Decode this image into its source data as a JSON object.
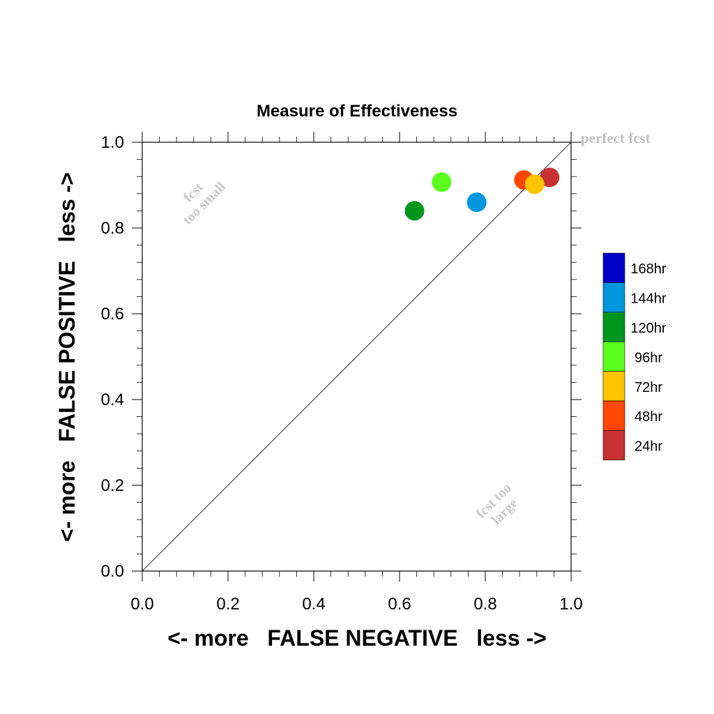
{
  "chart_data": {
    "type": "scatter",
    "title": "Measure of Effectiveness",
    "xlabel": "<- more   FALSE NEGATIVE   less ->",
    "ylabel": "<- more   FALSE POSITIVE   less ->",
    "xlim": [
      0.0,
      1.0
    ],
    "ylim": [
      0.0,
      1.0
    ],
    "xticks": [
      "0.0",
      "0.2",
      "0.4",
      "0.6",
      "0.8",
      "1.0"
    ],
    "yticks": [
      "0.0",
      "0.2",
      "0.4",
      "0.6",
      "0.8",
      "1.0"
    ],
    "diagonal_line": true,
    "annotations": {
      "perfect": "perfect fcst",
      "too_small": [
        "fcst",
        "too small"
      ],
      "too_large": [
        "fcst too",
        "large"
      ]
    },
    "legend_position": "right",
    "legend": [
      {
        "label": "168hr",
        "color": "#0000c8"
      },
      {
        "label": "144hr",
        "color": "#0096dc"
      },
      {
        "label": "120hr",
        "color": "#00961e"
      },
      {
        "label": "96hr",
        "color": "#5aff1e"
      },
      {
        "label": "72hr",
        "color": "#ffc300"
      },
      {
        "label": "48hr",
        "color": "#ff4600"
      },
      {
        "label": "24hr",
        "color": "#c83232"
      }
    ],
    "points": [
      {
        "series": "144hr",
        "x": 0.78,
        "y": 0.86,
        "color": "#0096dc"
      },
      {
        "series": "120hr",
        "x": 0.635,
        "y": 0.84,
        "color": "#00961e"
      },
      {
        "series": "96hr",
        "x": 0.698,
        "y": 0.907,
        "color": "#5aff1e"
      },
      {
        "series": "48hr",
        "x": 0.89,
        "y": 0.912,
        "color": "#ff4600"
      },
      {
        "series": "24hr",
        "x": 0.95,
        "y": 0.918,
        "color": "#c83232"
      },
      {
        "series": "72hr",
        "x": 0.915,
        "y": 0.902,
        "color": "#ffc300"
      }
    ]
  }
}
